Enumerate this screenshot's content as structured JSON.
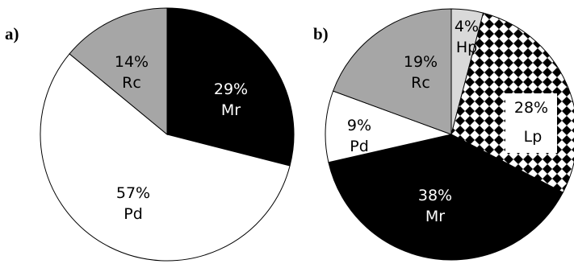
{
  "chart_data": [
    {
      "type": "pie",
      "panel_label": "a)",
      "slices": [
        {
          "percent_label": "29%",
          "name": "Mr",
          "value": 29,
          "color": "#000000",
          "text_color": "#ffffff",
          "pattern": "solid"
        },
        {
          "percent_label": "57%",
          "name": "Pd",
          "value": 57,
          "color": "#ffffff",
          "text_color": "#000000",
          "pattern": "solid"
        },
        {
          "percent_label": "14%",
          "name": "Rc",
          "value": 14,
          "color": "#a6a6a6",
          "text_color": "#000000",
          "pattern": "solid"
        }
      ]
    },
    {
      "type": "pie",
      "panel_label": "b)",
      "slices": [
        {
          "percent_label": "4%",
          "name": "Hp",
          "value": 4,
          "color": "#d9d9d9",
          "text_color": "#000000",
          "pattern": "solid"
        },
        {
          "percent_label": "28%",
          "name": "Lp",
          "value": 28,
          "color": "#000000",
          "text_color": "#000000",
          "pattern": "checker"
        },
        {
          "percent_label": "38%",
          "name": "Mr",
          "value": 38,
          "color": "#000000",
          "text_color": "#ffffff",
          "pattern": "solid"
        },
        {
          "percent_label": "9%",
          "name": "Pd",
          "value": 9,
          "color": "#ffffff",
          "text_color": "#000000",
          "pattern": "solid"
        },
        {
          "percent_label": "19%",
          "name": "Rc",
          "value": 19,
          "color": "#a6a6a6",
          "text_color": "#000000",
          "pattern": "solid"
        }
      ]
    }
  ]
}
